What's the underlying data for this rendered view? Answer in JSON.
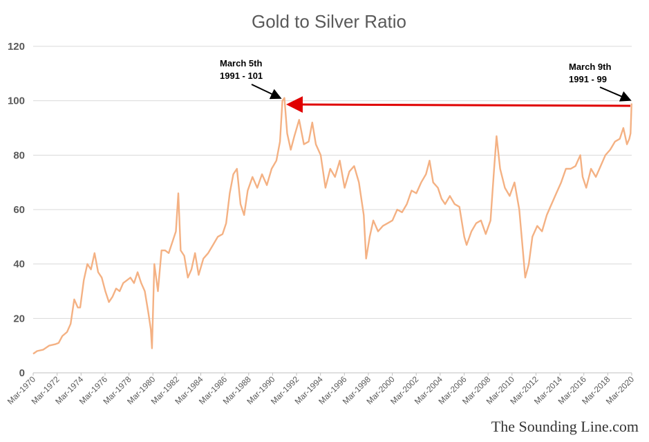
{
  "chart_data": {
    "type": "line",
    "title": "Gold to Silver Ratio",
    "xlabel": "",
    "ylabel": "",
    "ylim": [
      0,
      120
    ],
    "yticks": [
      "0",
      "20",
      "40",
      "60",
      "80",
      "100",
      "120"
    ],
    "xticks": [
      "Mar-1970",
      "Mar-1972",
      "Mar-1974",
      "Mar-1976",
      "Mar-1978",
      "Mar-1980",
      "Mar-1982",
      "Mar-1984",
      "Mar-1986",
      "Mar-1988",
      "Mar-1990",
      "Mar-1992",
      "Mar-1994",
      "Mar-1996",
      "Mar-1998",
      "Mar-2000",
      "Mar-2002",
      "Mar-2004",
      "Mar-2006",
      "Mar-2008",
      "Mar-2010",
      "Mar-2012",
      "Mar-2014",
      "Mar-2016",
      "Mar-2018",
      "Mar-2020"
    ],
    "xlim": [
      1970.17,
      2020.2
    ],
    "grid": true,
    "series": [
      {
        "color": "#f4b183",
        "x": [
          1970.17,
          1970.5,
          1971.0,
          1971.5,
          1972.0,
          1972.3,
          1972.6,
          1973.0,
          1973.3,
          1973.6,
          1973.9,
          1974.1,
          1974.4,
          1974.7,
          1975.0,
          1975.3,
          1975.6,
          1975.9,
          1976.2,
          1976.5,
          1976.8,
          1977.1,
          1977.4,
          1977.7,
          1978.0,
          1978.3,
          1978.6,
          1978.9,
          1979.2,
          1979.5,
          1979.8,
          1980.0,
          1980.1,
          1980.3,
          1980.6,
          1980.9,
          1981.2,
          1981.5,
          1981.8,
          1982.1,
          1982.3,
          1982.5,
          1982.8,
          1983.1,
          1983.4,
          1983.7,
          1984.0,
          1984.4,
          1984.8,
          1985.2,
          1985.6,
          1986.0,
          1986.3,
          1986.6,
          1986.9,
          1987.2,
          1987.5,
          1987.8,
          1988.1,
          1988.5,
          1988.9,
          1989.3,
          1989.7,
          1990.1,
          1990.5,
          1990.8,
          1991.0,
          1991.17,
          1991.4,
          1991.7,
          1992.0,
          1992.4,
          1992.8,
          1993.2,
          1993.5,
          1993.8,
          1994.2,
          1994.6,
          1995.0,
          1995.4,
          1995.8,
          1996.2,
          1996.6,
          1997.0,
          1997.4,
          1997.8,
          1998.0,
          1998.3,
          1998.6,
          1999.0,
          1999.4,
          1999.8,
          2000.2,
          2000.6,
          2001.0,
          2001.4,
          2001.8,
          2002.2,
          2002.6,
          2003.0,
          2003.3,
          2003.6,
          2004.0,
          2004.3,
          2004.6,
          2005.0,
          2005.4,
          2005.8,
          2006.2,
          2006.4,
          2006.8,
          2007.2,
          2007.6,
          2008.0,
          2008.4,
          2008.7,
          2008.9,
          2009.2,
          2009.6,
          2010.0,
          2010.4,
          2010.8,
          2011.1,
          2011.3,
          2011.6,
          2011.9,
          2012.3,
          2012.7,
          2013.1,
          2013.5,
          2013.9,
          2014.3,
          2014.7,
          2015.1,
          2015.5,
          2015.9,
          2016.1,
          2016.4,
          2016.8,
          2017.2,
          2017.6,
          2018.0,
          2018.4,
          2018.8,
          2019.2,
          2019.5,
          2019.8,
          2020.0,
          2020.1,
          2020.19
        ],
        "y": [
          7,
          8,
          8.5,
          10,
          10.5,
          11,
          13.5,
          15,
          18,
          27,
          24,
          24,
          34,
          40,
          38,
          44,
          37,
          35,
          30,
          26,
          28,
          31,
          30,
          33,
          34,
          35,
          33,
          37,
          33,
          30,
          22,
          16,
          9,
          40,
          30,
          45,
          45,
          44,
          48,
          52,
          66,
          45,
          43,
          35,
          38,
          44,
          36,
          42,
          44,
          47,
          50,
          51,
          55,
          66,
          73,
          75,
          62,
          58,
          67,
          72,
          68,
          73,
          69,
          75,
          78,
          85,
          100,
          101,
          88,
          82,
          87,
          93,
          84,
          85,
          92,
          84,
          80,
          68,
          75,
          72,
          78,
          68,
          74,
          76,
          70,
          58,
          42,
          50,
          56,
          52,
          54,
          55,
          56,
          60,
          59,
          62,
          67,
          66,
          70,
          73,
          78,
          70,
          68,
          64,
          62,
          65,
          62,
          61,
          50,
          47,
          52,
          55,
          56,
          51,
          56,
          75,
          87,
          75,
          68,
          65,
          70,
          60,
          45,
          35,
          40,
          50,
          54,
          52,
          58,
          62,
          66,
          70,
          75,
          75,
          76,
          80,
          72,
          68,
          75,
          72,
          76,
          80,
          82,
          85,
          86,
          90,
          84,
          86,
          88,
          99
        ]
      }
    ],
    "annotations": [
      {
        "line1": "March 5th",
        "line2": "1991 - 101"
      },
      {
        "line1": "March 9th",
        "line2": "1991 - 99"
      }
    ],
    "colors": {
      "line": "#f4b183",
      "arrow_red": "#e00000",
      "arrow_black": "#000000",
      "grid": "#d9d9d9"
    }
  },
  "credit": "The Sounding Line.com"
}
